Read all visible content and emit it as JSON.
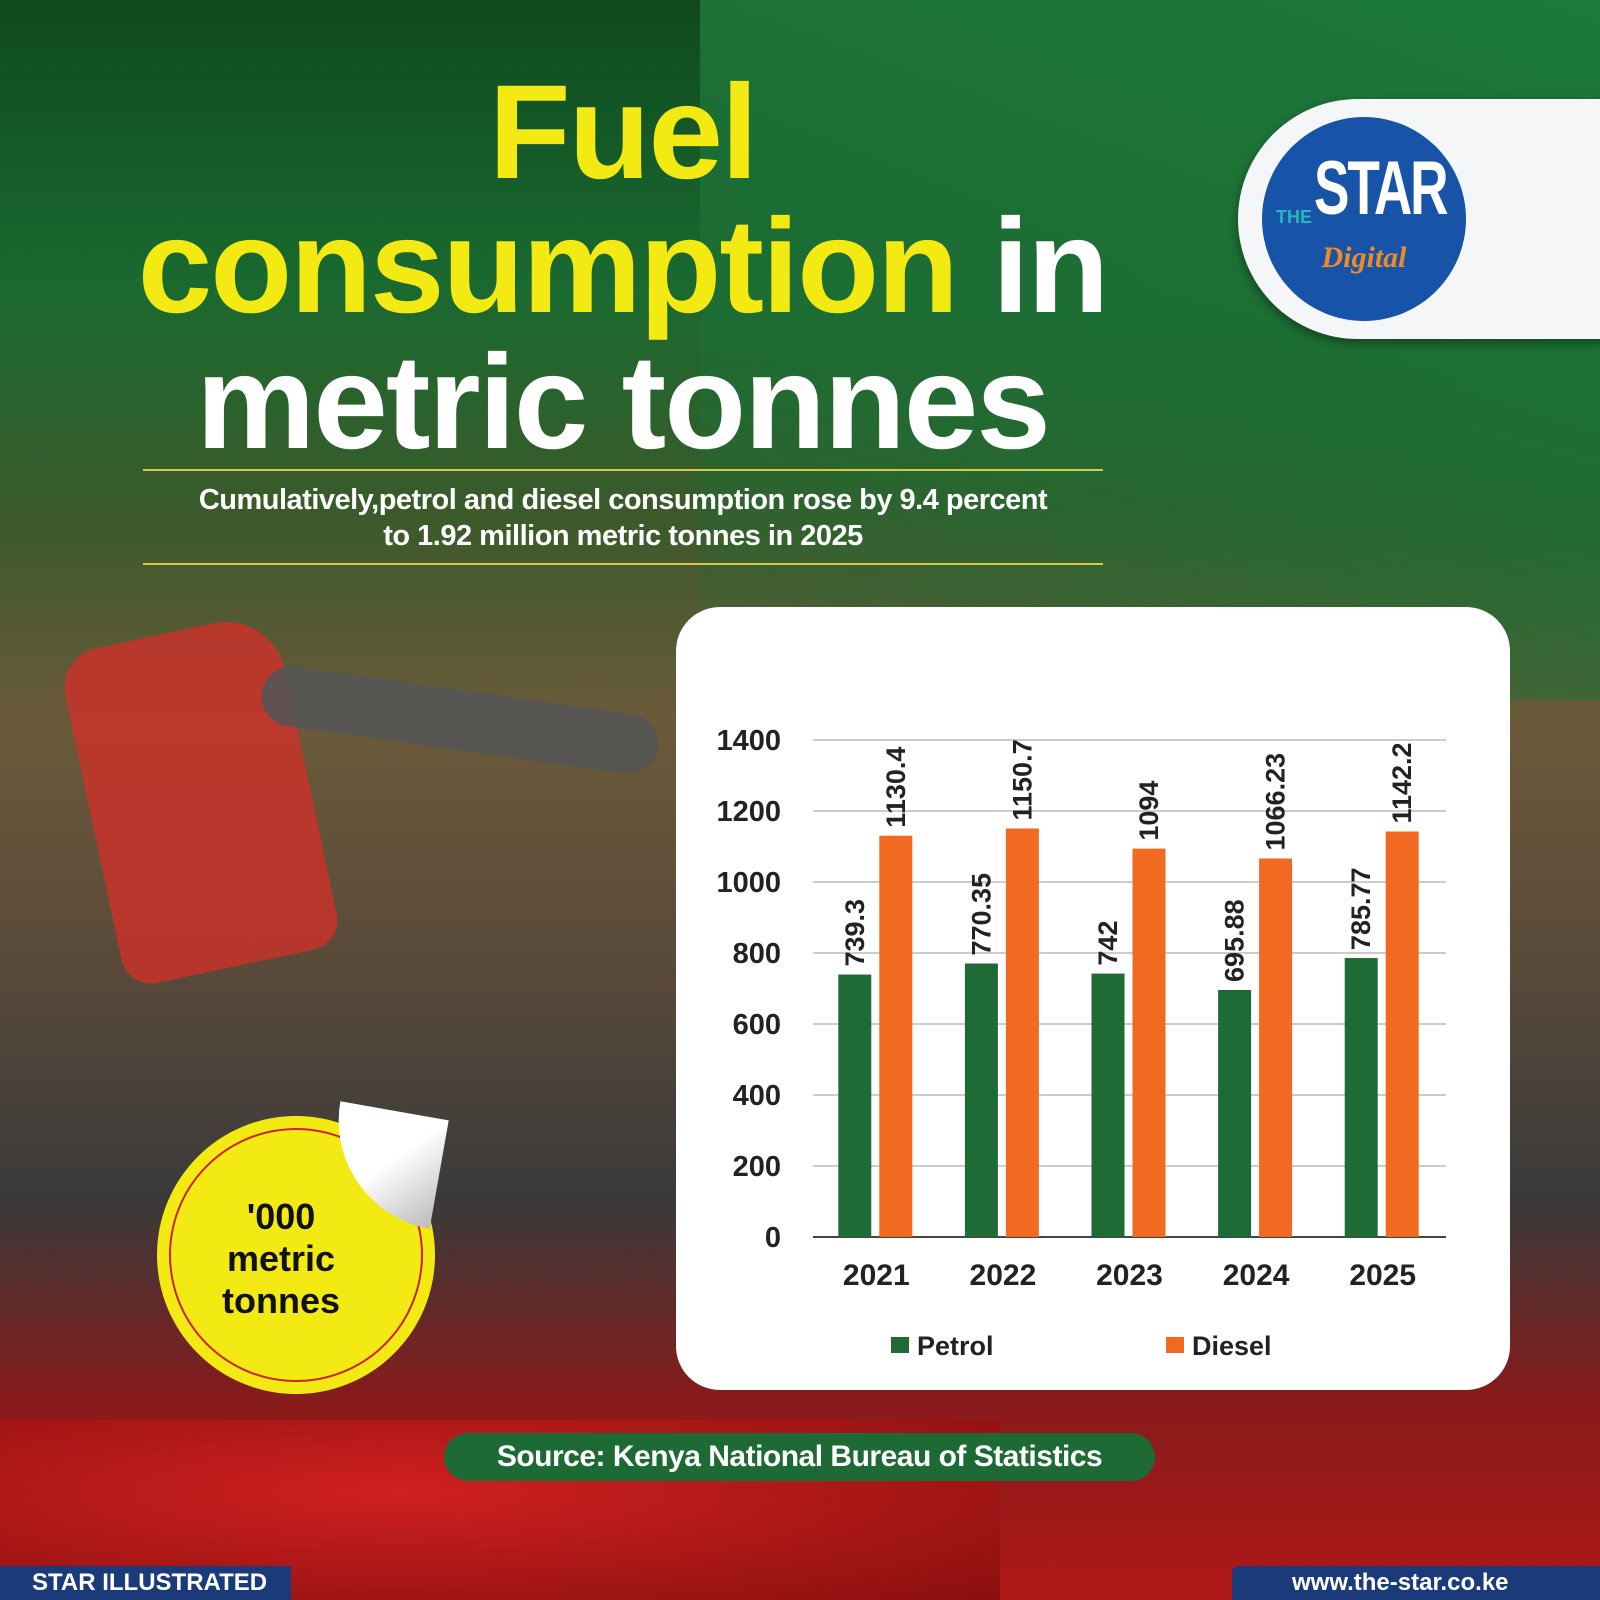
{
  "title": {
    "line1": "Fuel",
    "line2a": "consumption",
    "line2b": " in",
    "line3": "metric tonnes"
  },
  "subtitle": {
    "line1": "Cumulatively,petrol and diesel consumption rose by 9.4 percent",
    "line2": "to 1.92 million metric tonnes in 2025"
  },
  "logo": {
    "the": "THE",
    "star": "STAR",
    "digital": "Digital"
  },
  "sticker": {
    "line1": "'000",
    "line2": "metric",
    "line3": "tonnes"
  },
  "source": "Source: Kenya National Bureau of Statistics",
  "footer": {
    "left": "STAR ILLUSTRATED",
    "right": "www.the-star.co.ke"
  },
  "colors": {
    "petrol": "#1e6b36",
    "diesel": "#f26a22"
  },
  "chart_data": {
    "type": "bar",
    "categories": [
      "2021",
      "2022",
      "2023",
      "2024",
      "2025"
    ],
    "series": [
      {
        "name": "Petrol",
        "values": [
          739.3,
          770.35,
          742,
          695.88,
          785.77
        ],
        "labels": [
          "739.3",
          "770.35",
          "742",
          "695.88",
          "785.77"
        ]
      },
      {
        "name": "Diesel",
        "values": [
          1130.4,
          1150.7,
          1094,
          1066.23,
          1142.2
        ],
        "labels": [
          "1130.4",
          "1150.7",
          "1094",
          "1066.23",
          "1142.2"
        ]
      }
    ],
    "ylim": [
      0,
      1400
    ],
    "yticks": [
      "0",
      "200",
      "400",
      "600",
      "800",
      "1000",
      "1200",
      "1400"
    ],
    "grid": true,
    "legend": "bottom"
  }
}
